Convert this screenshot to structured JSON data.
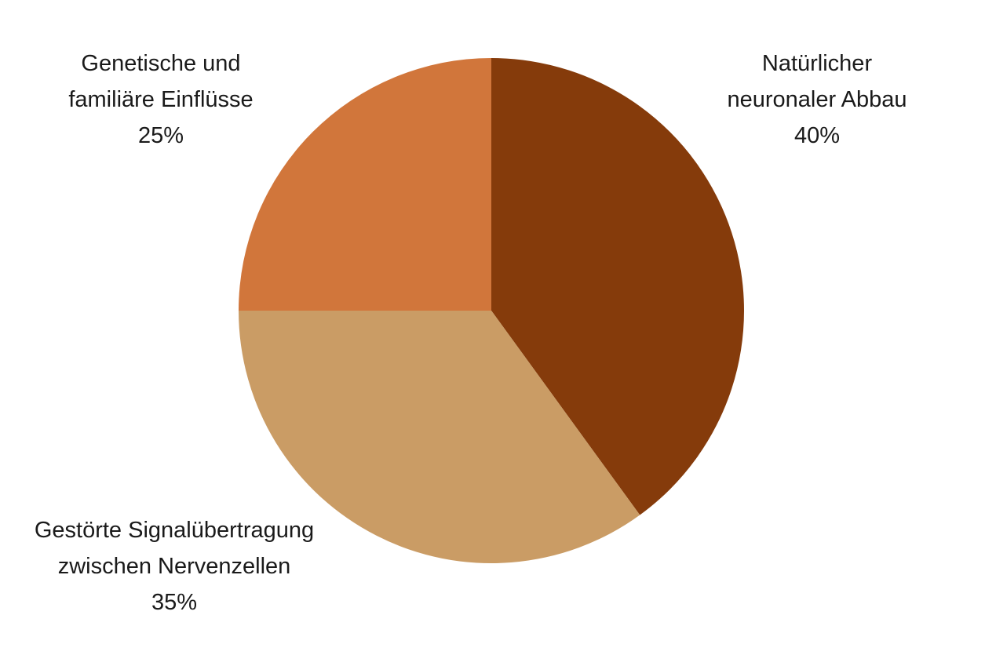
{
  "chart_data": {
    "type": "pie",
    "title": "",
    "start_angle_deg": 0,
    "direction": "clockwise",
    "legend": "none",
    "slices": [
      {
        "label_lines": [
          "Natürlicher",
          "neuronaler Abbau"
        ],
        "value": 40,
        "value_label": "40%",
        "color": "#853b0b"
      },
      {
        "label_lines": [
          "Gestörte Signalübertragung",
          "zwischen Nervenzellen"
        ],
        "value": 35,
        "value_label": "35%",
        "color": "#ca9c65"
      },
      {
        "label_lines": [
          "Genetische und",
          "familiäre Einflüsse"
        ],
        "value": 25,
        "value_label": "25%",
        "color": "#d1763b"
      }
    ]
  }
}
